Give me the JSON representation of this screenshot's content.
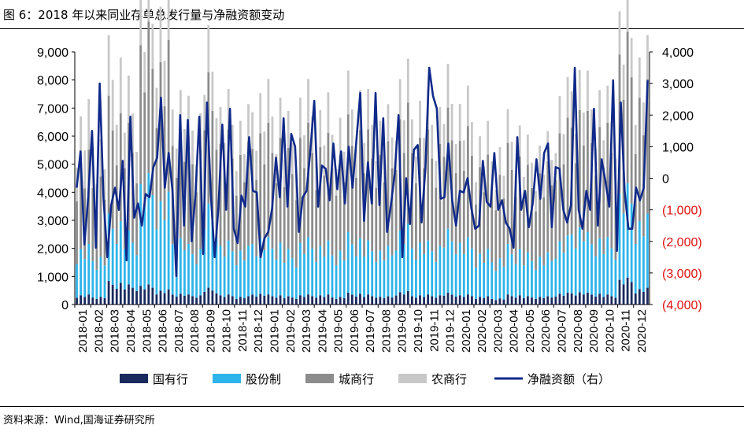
{
  "title": "图 6：2018 年以来同业存单总发行量与净融资额变动",
  "source": "资料来源：Wind,国海证券研究所",
  "colors": {
    "guoyou": "#1a2a5e",
    "gufen": "#2eb4ea",
    "chengshang": "#8c8c8c",
    "nongshang": "#c8c8c8",
    "net": "#102a8a",
    "negative_tick": "#e01010"
  },
  "chart_data": {
    "type": "bar",
    "left_axis": {
      "ylim": [
        0,
        9000
      ],
      "ticks": [
        "0",
        "1,000",
        "2,000",
        "3,000",
        "4,000",
        "5,000",
        "6,000",
        "7,000",
        "8,000",
        "9,000"
      ]
    },
    "right_axis": {
      "ylim": [
        -4000,
        4000
      ],
      "ticks": [
        "(4,000)",
        "(3,000)",
        "(2,000)",
        "(1,000)",
        "0",
        "1,000",
        "2,000",
        "3,000",
        "4,000"
      ]
    },
    "x_labels": [
      "2018-01",
      "2018-02",
      "2018-03",
      "2018-04",
      "2018-05",
      "2018-06",
      "2018-07",
      "2018-08",
      "2018-09",
      "2018-10",
      "2018-11",
      "2018-12",
      "2019-01",
      "2019-02",
      "2019-03",
      "2019-04",
      "2019-05",
      "2019-06",
      "2019-07",
      "2019-08",
      "2019-09",
      "2019-10",
      "2019-11",
      "2019-12",
      "2020-01",
      "2020-02",
      "2020-03",
      "2020-04",
      "2020-05",
      "2020-06",
      "2020-07",
      "2020-08",
      "2020-09",
      "2020-10",
      "2020-11",
      "2020-12"
    ],
    "legend": [
      "国有行",
      "股份制",
      "城商行",
      "农商行",
      "净融资额（右）"
    ],
    "bars": {
      "guoyou": [
        300,
        250,
        700,
        600,
        600,
        450,
        350,
        300,
        500,
        300,
        250,
        350,
        300,
        250,
        300,
        300,
        250,
        350,
        300,
        250,
        400,
        300,
        300,
        350,
        300,
        250,
        200,
        300,
        250,
        250,
        350,
        400,
        350,
        300,
        800,
        500
      ],
      "gufen": [
        1500,
        1300,
        2000,
        1600,
        3300,
        2900,
        1800,
        1500,
        2500,
        1600,
        1500,
        1800,
        1700,
        1400,
        1700,
        1600,
        1500,
        1800,
        1600,
        1500,
        2000,
        1700,
        1600,
        1900,
        1700,
        1400,
        1300,
        1500,
        1300,
        1300,
        1700,
        2100,
        1800,
        1700,
        2800,
        2200
      ],
      "chengshang": [
        2800,
        2600,
        3500,
        3200,
        4500,
        4500,
        3500,
        3200,
        3900,
        3300,
        3100,
        3400,
        3400,
        3000,
        3400,
        3200,
        3100,
        3500,
        3300,
        3100,
        3600,
        3400,
        3300,
        3600,
        3300,
        2800,
        2700,
        3000,
        2600,
        2700,
        3500,
        3800,
        3600,
        3400,
        4500,
        4000
      ],
      "nongshang": [
        1500,
        1200,
        1800,
        1400,
        1600,
        1800,
        1300,
        1200,
        1400,
        1200,
        1100,
        1300,
        1300,
        1100,
        1300,
        1200,
        1200,
        1300,
        1200,
        1100,
        1300,
        1200,
        1200,
        1300,
        1200,
        1000,
        900,
        1000,
        900,
        900,
        1200,
        1300,
        1200,
        1100,
        1400,
        1300
      ]
    },
    "net": [
      -300,
      850,
      -2100,
      -600,
      1500,
      -2200,
      3000,
      -650,
      -2500,
      -850,
      -300,
      -1000,
      550,
      -2600,
      1950,
      -1250,
      -800,
      -1500,
      -500,
      -600,
      350,
      650,
      2550,
      -300,
      800,
      -400,
      -3100,
      2000,
      -1500,
      1850,
      -2000,
      -500,
      1950,
      -2400,
      2400,
      -500,
      -2500,
      -900,
      1700,
      -1000,
      2200,
      -1600,
      -2050,
      -550,
      -900,
      1300,
      -400,
      -450,
      -2500,
      -1900,
      -1700,
      -950,
      650,
      -600,
      1900,
      -900,
      1400,
      1000,
      -1700,
      -600,
      -400,
      900,
      2450,
      -900,
      400,
      300,
      -700,
      1100,
      -350,
      850,
      -800,
      1000,
      -300,
      1200,
      2700,
      -1350,
      500,
      -800,
      2700,
      -850,
      1900,
      -1700,
      -850,
      150,
      2000,
      -2500,
      0,
      -1450,
      900,
      1050,
      -1400,
      300,
      3500,
      2600,
      2200,
      -650,
      -600,
      1100,
      -700,
      -1500,
      -400,
      -450,
      0,
      -950,
      -1600,
      -1500,
      550,
      -750,
      -900,
      800,
      -1000,
      -700,
      -1400,
      -1600,
      -2200,
      1300,
      -1000,
      -400,
      -1550,
      -800,
      600,
      -650,
      800,
      1100,
      -1550,
      350,
      300,
      -1000,
      -1400,
      -850,
      3500,
      -1000,
      -1600,
      -400,
      -1000,
      2200,
      -1500,
      600,
      -100,
      -900,
      3100,
      -2300,
      2400,
      -400,
      -1600,
      -1600,
      -300,
      -700,
      -300,
      3100
    ]
  }
}
